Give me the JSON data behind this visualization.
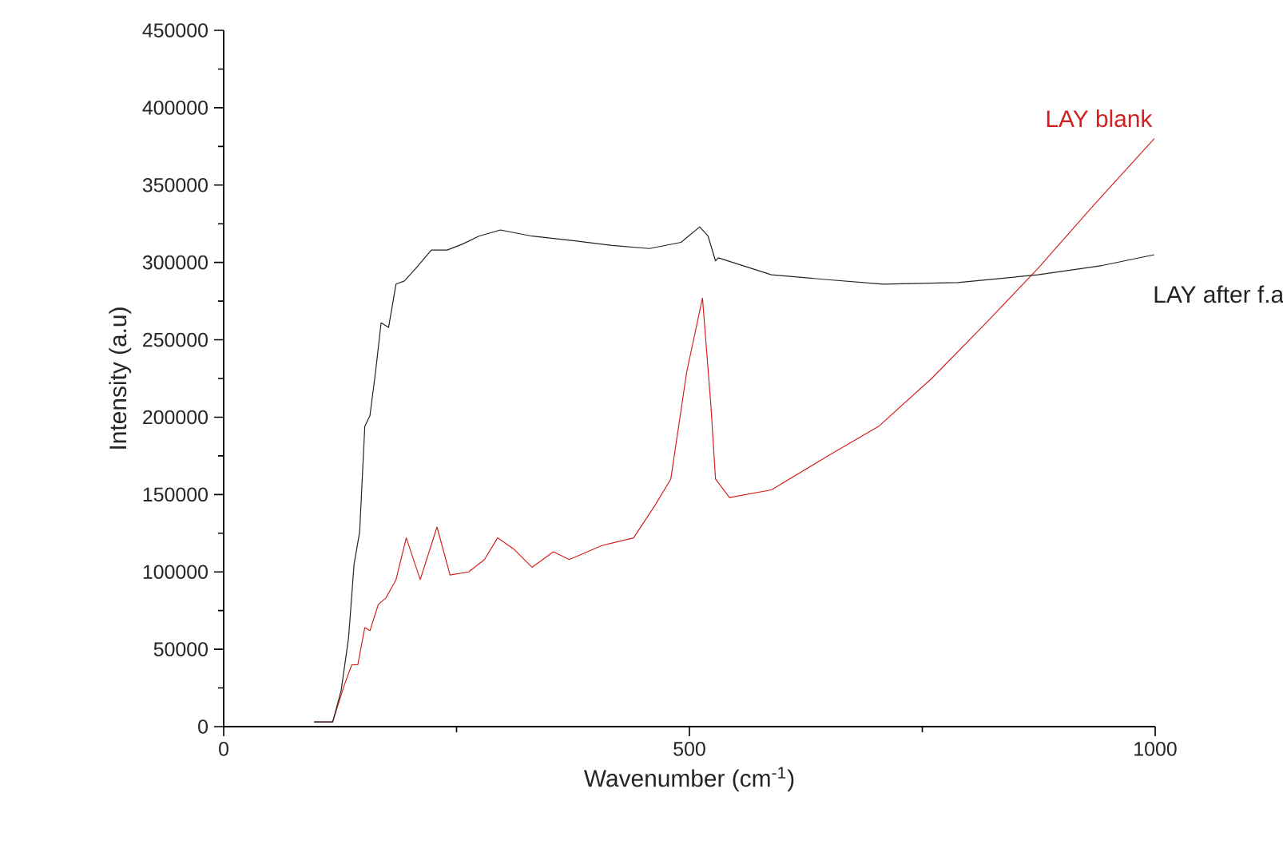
{
  "chart_data": {
    "type": "line",
    "xlabel": "Wavenumber (cm$^{-1}$)",
    "ylabel": "Intensity (a.u)",
    "xlim": [
      0,
      1000
    ],
    "xticks": [
      0,
      500,
      1000
    ],
    "ylim": [
      0,
      450000
    ],
    "yticks": [
      0,
      50000,
      100000,
      150000,
      200000,
      250000,
      300000,
      350000,
      400000,
      450000
    ],
    "grid": false,
    "legend": false,
    "marker": "none",
    "line_style": "solid",
    "series": [
      {
        "name": "LAY blank",
        "color": "#d42020",
        "x": [
          97,
          117,
          129,
          137.5,
          144,
          151.5,
          157,
          166,
          174,
          185,
          196,
          211,
          229,
          243,
          263,
          280,
          294,
          311,
          331,
          354,
          371,
          406,
          440,
          463,
          480,
          497,
          514,
          523,
          528,
          543,
          588,
          646,
          703,
          760,
          817,
          874,
          931,
          999
        ],
        "values": [
          3000,
          3000,
          26000,
          40000,
          40000,
          64000,
          62000,
          79000,
          83000,
          95000,
          122000,
          95000,
          129000,
          98000,
          100000,
          108000,
          122000,
          115000,
          103000,
          113000,
          108000,
          117000,
          122000,
          143000,
          160000,
          229000,
          277000,
          208000,
          160000,
          148000,
          153000,
          174000,
          194000,
          225000,
          260000,
          296000,
          335000,
          380000
        ]
      },
      {
        "name": "LAY after f.a",
        "color": "#222222",
        "x": [
          97,
          117,
          126,
          134,
          140,
          146,
          151.5,
          157,
          163,
          169,
          177,
          185,
          194,
          206,
          223,
          240,
          257,
          274,
          297,
          331,
          377,
          417,
          457,
          491,
          511,
          520,
          528,
          531,
          588,
          646,
          708,
          788,
          874,
          943,
          999
        ],
        "values": [
          3000,
          3000,
          23000,
          57000,
          105000,
          126000,
          194000,
          201000,
          229000,
          261000,
          258000,
          286000,
          288000,
          296000,
          308000,
          308000,
          312000,
          317000,
          321000,
          317000,
          314000,
          311000,
          309000,
          313000,
          323000,
          317000,
          301000,
          303000,
          292000,
          289000,
          286000,
          287000,
          292000,
          298000,
          305000
        ]
      }
    ]
  }
}
